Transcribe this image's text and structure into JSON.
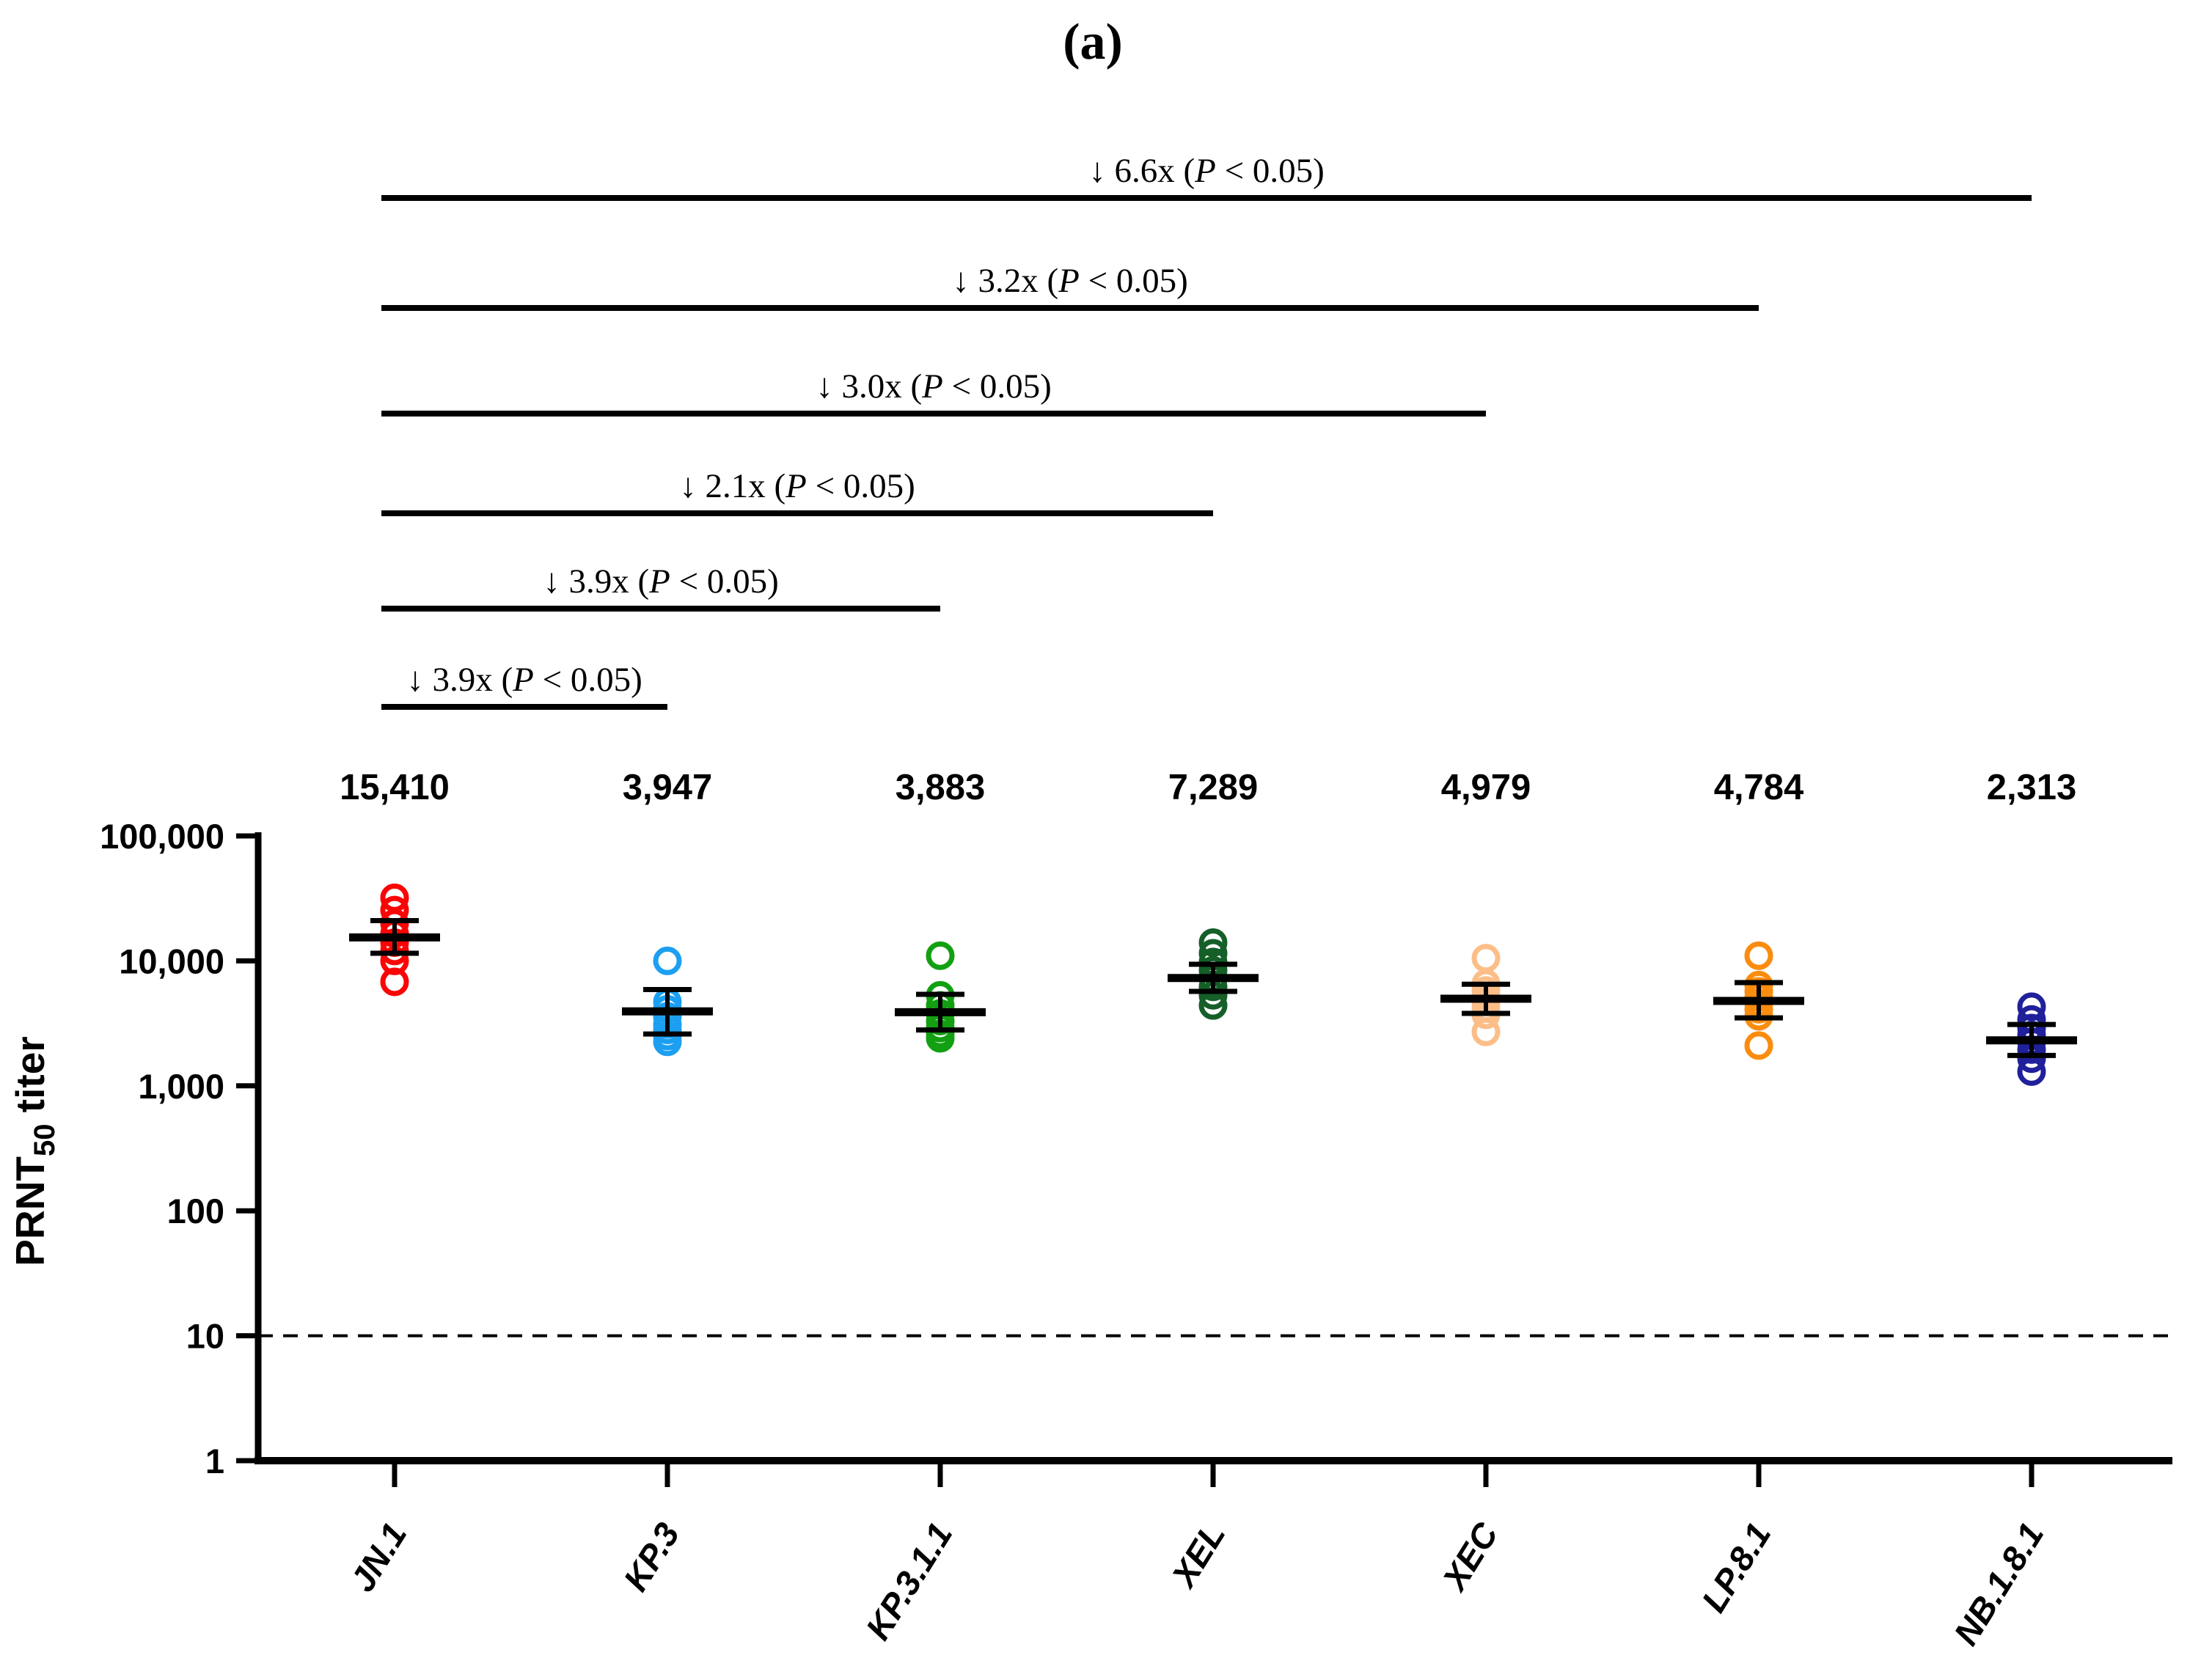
{
  "figure": {
    "panel_label": "(a)"
  },
  "chart_data": {
    "type": "scatter",
    "title": "(a)",
    "ylabel": "PRNT50 titer",
    "ylabel_parts": {
      "main": "PRNT",
      "sub": "50",
      "rest": " titer"
    },
    "yscale": "log",
    "ylim": [
      1,
      100000
    ],
    "yticks": [
      100000,
      10000,
      1000,
      100,
      10,
      1
    ],
    "ytick_labels": [
      "100,000",
      "10,000",
      "1,000",
      "100",
      "10",
      "1"
    ],
    "detection_line_y": 10,
    "grid": false,
    "legend": "none",
    "point_style": "open-circles",
    "categories": [
      "JN.1",
      "KP.3",
      "KP.3.1.1",
      "XEL",
      "XEC",
      "LP.8.1",
      "NB.1.8.1"
    ],
    "gmt_values": [
      15410,
      3947,
      3883,
      7289,
      4979,
      4784,
      2313
    ],
    "gmt_labels": [
      "15,410",
      "3,947",
      "3,883",
      "7,289",
      "4,979",
      "4,784",
      "2,313"
    ],
    "series": [
      {
        "name": "JN.1",
        "color": "#fa0505",
        "gmt": 15410,
        "error_upper": 21000,
        "error_lower": 11500,
        "points": [
          32000,
          25500,
          20000,
          16500,
          14000,
          12000,
          10000,
          6800
        ]
      },
      {
        "name": "KP.3",
        "color": "#1c9ff0",
        "gmt": 3947,
        "error_upper": 5900,
        "error_lower": 2600,
        "points": [
          10000,
          4700,
          4100,
          3600,
          3100,
          2800,
          2500,
          2250
        ]
      },
      {
        "name": "KP.3.1.1",
        "color": "#12a012",
        "gmt": 3883,
        "error_upper": 5400,
        "error_lower": 2800,
        "points": [
          11000,
          5300,
          4400,
          3800,
          3300,
          2900,
          2600,
          2400
        ]
      },
      {
        "name": "XEL",
        "color": "#155f28",
        "gmt": 7289,
        "error_upper": 9400,
        "error_lower": 5700,
        "points": [
          14000,
          11500,
          9800,
          8400,
          7200,
          6200,
          5300,
          4400
        ]
      },
      {
        "name": "XEC",
        "color": "#fcbe88",
        "gmt": 4979,
        "error_upper": 6500,
        "error_lower": 3800,
        "points": [
          10500,
          6600,
          5800,
          5200,
          4700,
          4200,
          3700,
          2700
        ]
      },
      {
        "name": "LP.8.1",
        "color": "#fb8c0e",
        "gmt": 4784,
        "error_upper": 6700,
        "error_lower": 3500,
        "points": [
          11000,
          6400,
          5700,
          5100,
          4600,
          4100,
          3600,
          2100
        ]
      },
      {
        "name": "NB.1.8.1",
        "color": "#20209b",
        "gmt": 2313,
        "error_upper": 3100,
        "error_lower": 1750,
        "points": [
          4300,
          3400,
          2900,
          2550,
          2250,
          1950,
          1650,
          1300
        ]
      }
    ],
    "comparisons": [
      {
        "label": "↓ 6.6x (P < 0.05)",
        "prefix": "↓ 6.6x (",
        "p": "P",
        "suffix": " < 0.05)",
        "from": "JN.1",
        "to": "NB.1.8.1"
      },
      {
        "label": "↓ 3.2x (P < 0.05)",
        "prefix": "↓ 3.2x (",
        "p": "P",
        "suffix": " < 0.05)",
        "from": "JN.1",
        "to": "LP.8.1"
      },
      {
        "label": "↓ 3.0x (P < 0.05)",
        "prefix": "↓ 3.0x (",
        "p": "P",
        "suffix": " < 0.05)",
        "from": "JN.1",
        "to": "XEC"
      },
      {
        "label": "↓ 2.1x (P < 0.05)",
        "prefix": "↓ 2.1x (",
        "p": "P",
        "suffix": " < 0.05)",
        "from": "JN.1",
        "to": "XEL"
      },
      {
        "label": "↓ 3.9x (P < 0.05)",
        "prefix": "↓ 3.9x (",
        "p": "P",
        "suffix": " < 0.05)",
        "from": "JN.1",
        "to": "KP.3.1.1"
      },
      {
        "label": "↓ 3.9x (P < 0.05)",
        "prefix": "↓ 3.9x (",
        "p": "P",
        "suffix": " < 0.05)",
        "from": "JN.1",
        "to": "KP.3"
      }
    ],
    "colors": {
      "axis": "#000000",
      "significance_bars": "#000000",
      "mean_error_bars": "#000000"
    }
  }
}
